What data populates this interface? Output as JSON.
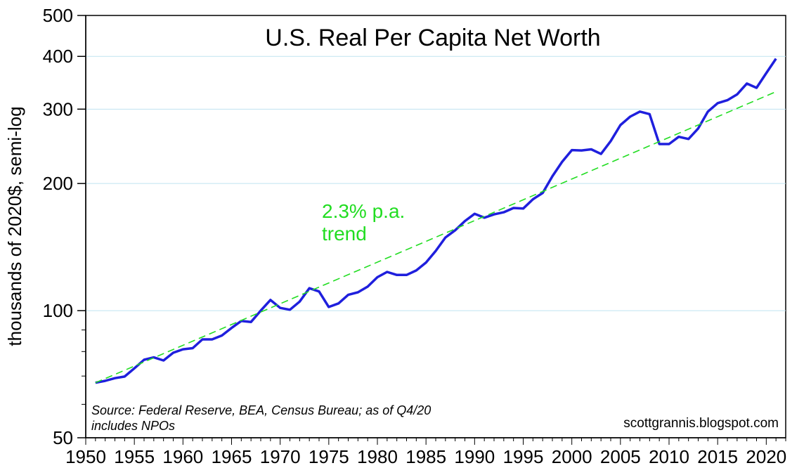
{
  "chart_data": {
    "type": "line",
    "title": "U.S. Real Per Capita Net Worth",
    "ylabel": "thousands of 2020$, semi-log",
    "xlabel": "",
    "y_scale": "log",
    "xlim": [
      1950,
      2022
    ],
    "ylim": [
      50,
      500
    ],
    "x_ticks": [
      1950,
      1955,
      1960,
      1965,
      1970,
      1975,
      1980,
      1985,
      1990,
      1995,
      2000,
      2005,
      2010,
      2015,
      2020
    ],
    "y_ticks": [
      50,
      100,
      200,
      300,
      400,
      500
    ],
    "y_gridlines": [
      100,
      200,
      300,
      400
    ],
    "grid": "horizontal",
    "series": [
      {
        "color": "#1f1fdd",
        "x": [
          1951,
          1952,
          1953,
          1954,
          1955,
          1956,
          1957,
          1958,
          1959,
          1960,
          1961,
          1962,
          1963,
          1964,
          1965,
          1966,
          1967,
          1968,
          1969,
          1970,
          1971,
          1972,
          1973,
          1974,
          1975,
          1976,
          1977,
          1978,
          1979,
          1980,
          1981,
          1982,
          1983,
          1984,
          1985,
          1986,
          1987,
          1988,
          1989,
          1990,
          1991,
          1992,
          1993,
          1994,
          1995,
          1996,
          1997,
          1998,
          1999,
          2000,
          2001,
          2002,
          2003,
          2004,
          2005,
          2006,
          2007,
          2008,
          2009,
          2010,
          2011,
          2012,
          2013,
          2014,
          2015,
          2016,
          2017,
          2018,
          2019,
          2020,
          2021
        ],
        "values": [
          67.5,
          68.2,
          69.2,
          69.8,
          73,
          76.5,
          77.5,
          76.2,
          79.5,
          81,
          81.5,
          85.5,
          85.5,
          87.3,
          91,
          94.5,
          94,
          100,
          106,
          101.5,
          100.5,
          105,
          113,
          111,
          102,
          104,
          109,
          110.5,
          114,
          120,
          123.5,
          121.5,
          121.5,
          124.5,
          130,
          138.5,
          149,
          155,
          163,
          169.5,
          166,
          169,
          171,
          175,
          174.5,
          183.5,
          190,
          208,
          225,
          240,
          239.5,
          241,
          235,
          252,
          275,
          288,
          296,
          292,
          248,
          248,
          258,
          255,
          270,
          296,
          310,
          315,
          325,
          345,
          337,
          365,
          395
        ]
      },
      {
        "name": "2.3% p.a. trend",
        "color": "#22dd22",
        "style": "dashed",
        "x": [
          1951,
          2021
        ],
        "values": [
          67.5,
          330
        ]
      }
    ],
    "annotations": {
      "trend_line1": "2.3% p.a.",
      "trend_line2": "trend",
      "source_line1": "Source: Federal Reserve, BEA, Census Bureau; as of Q4/20",
      "source_line2": "includes NPOs",
      "credit": "scottgrannis.blogspot.com"
    }
  }
}
